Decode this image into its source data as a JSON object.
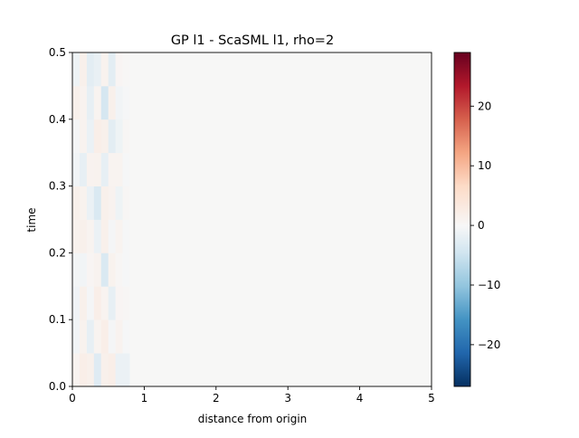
{
  "chart_data": {
    "type": "heatmap",
    "title": "GP l1 - ScaSML l1, rho=2",
    "xlabel": "distance from origin",
    "ylabel": "time",
    "xlim": [
      0,
      5
    ],
    "ylim": [
      0,
      0.5
    ],
    "x_ticks": [
      "0",
      "1",
      "2",
      "3",
      "4",
      "5"
    ],
    "y_ticks": [
      "0.0",
      "0.1",
      "0.2",
      "0.3",
      "0.4",
      "0.5"
    ],
    "x_tick_values": [
      0,
      1,
      2,
      3,
      4,
      5
    ],
    "y_tick_values": [
      0,
      0.1,
      0.2,
      0.3,
      0.4,
      0.5
    ],
    "colorbar": {
      "cmap": "RdBu_r",
      "range": [
        -27,
        29
      ],
      "ticks": [
        "−20",
        "−10",
        "0",
        "10",
        "20"
      ],
      "tick_values": [
        -20,
        -10,
        0,
        10,
        20
      ]
    },
    "grid": false,
    "legend": "none",
    "data_description_rows": 10,
    "x_edges": [
      0,
      0.1,
      0.2,
      0.3,
      0.4,
      0.5,
      0.6,
      0.7,
      0.8,
      5
    ],
    "rows": [
      {
        "t": [
          0.0,
          0.05
        ],
        "values": [
          0.8,
          2.0,
          1.5,
          -3.0,
          1.5,
          2.0,
          -1.5,
          -1.5,
          0
        ]
      },
      {
        "t": [
          0.05,
          0.1
        ],
        "values": [
          -0.8,
          1.2,
          -2.0,
          0.8,
          2.0,
          -0.5,
          1.0,
          -0.3,
          0
        ]
      },
      {
        "t": [
          0.1,
          0.15
        ],
        "values": [
          -1.0,
          1.5,
          -0.5,
          2.0,
          0.8,
          -2.0,
          0.5,
          0.3,
          0
        ]
      },
      {
        "t": [
          0.15,
          0.2
        ],
        "values": [
          -0.6,
          -0.8,
          0.5,
          1.0,
          -3.5,
          1.2,
          0.3,
          -0.4,
          0
        ]
      },
      {
        "t": [
          0.2,
          0.25
        ],
        "values": [
          1.2,
          1.5,
          0.8,
          -1.5,
          1.5,
          -0.5,
          0.8,
          -0.3,
          0
        ]
      },
      {
        "t": [
          0.25,
          0.3
        ],
        "values": [
          1.5,
          1.2,
          -1.5,
          -3.5,
          1.5,
          1.0,
          -1.2,
          0.3,
          0
        ]
      },
      {
        "t": [
          0.3,
          0.35
        ],
        "values": [
          -0.8,
          -2.0,
          1.0,
          1.2,
          -2.0,
          0.8,
          0.8,
          -0.3,
          0
        ]
      },
      {
        "t": [
          0.35,
          0.4
        ],
        "values": [
          -0.5,
          1.0,
          -1.5,
          2.0,
          1.5,
          -2.5,
          -1.2,
          0.3,
          0
        ]
      },
      {
        "t": [
          0.4,
          0.45
        ],
        "values": [
          1.5,
          1.0,
          -2.0,
          0.8,
          -4.0,
          1.5,
          -0.8,
          -0.3,
          0
        ]
      },
      {
        "t": [
          0.45,
          0.5
        ],
        "values": [
          -1.2,
          1.5,
          -2.5,
          -1.8,
          1.2,
          -2.5,
          0.5,
          0.2,
          0
        ]
      }
    ]
  }
}
